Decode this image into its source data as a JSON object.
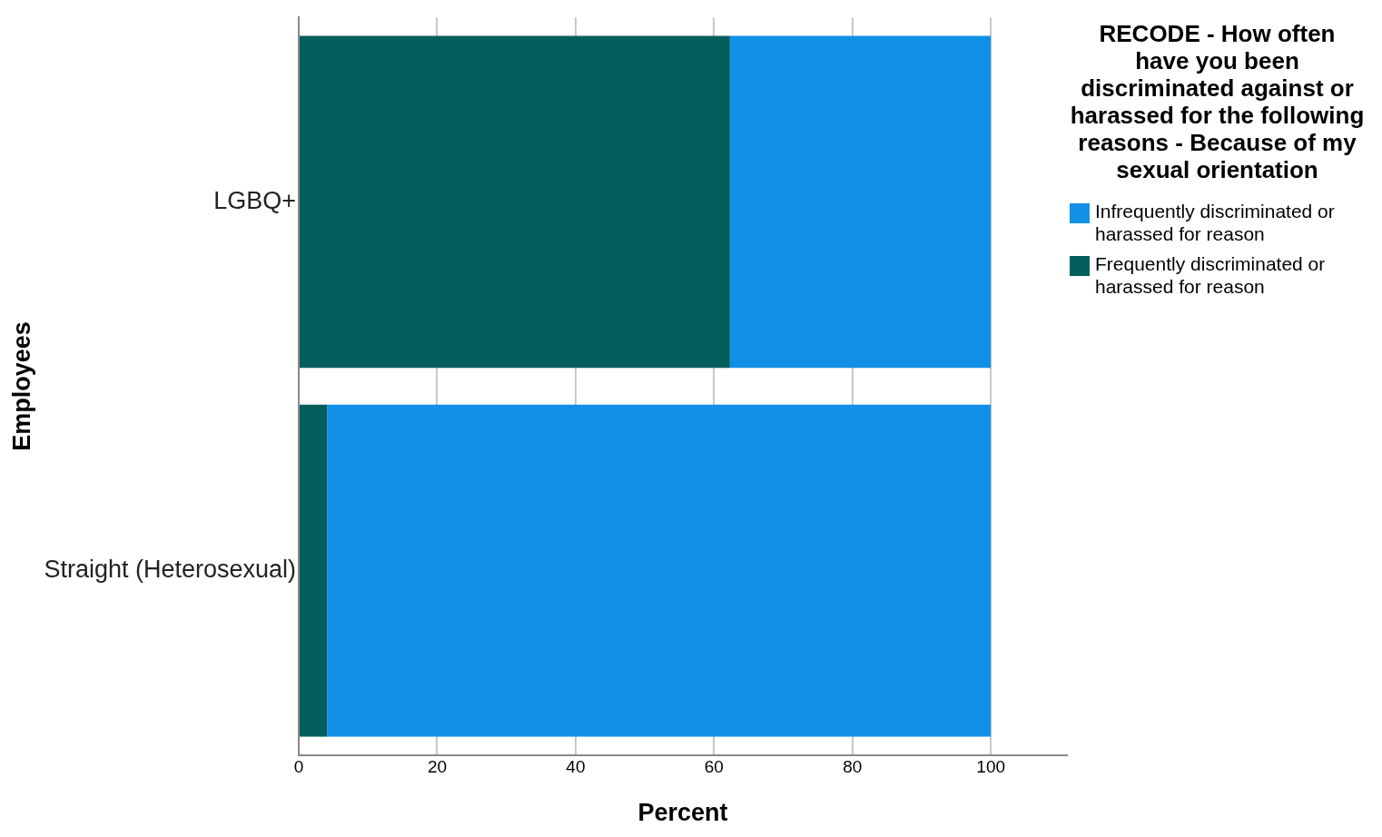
{
  "chart_data": {
    "type": "bar",
    "orientation": "horizontal",
    "stacked": true,
    "categories": [
      "LGBQ+",
      "Straight (Heterosexual)"
    ],
    "series": [
      {
        "name": "Frequently discriminated or harassed for reason",
        "color": "#035e5c",
        "values": [
          62.3,
          4.1
        ]
      },
      {
        "name": "Infrequently discriminated or harassed for reason",
        "color": "#1290e6",
        "values": [
          37.7,
          95.9
        ]
      }
    ],
    "xlim": [
      0,
      111
    ],
    "xticks": [
      0,
      20,
      40,
      60,
      80,
      100
    ],
    "xlabel": "Percent",
    "ylabel": "Employees",
    "legend_title": "RECODE -  How often have you been discriminated against or harassed for the following reasons - Because of my sexual orientation",
    "legend": "top right",
    "grid": "x"
  }
}
